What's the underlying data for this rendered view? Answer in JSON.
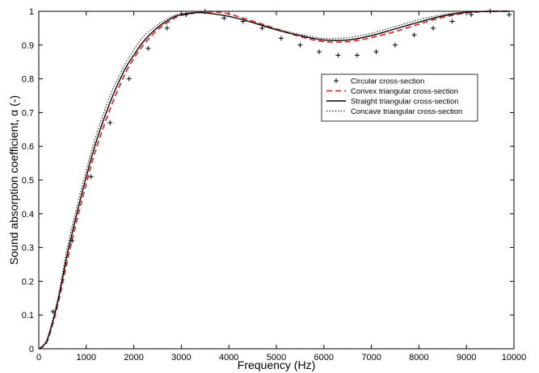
{
  "chart_data": {
    "type": "line",
    "title": "",
    "xlabel": "Frequency (Hz)",
    "ylabel": "Sound absorption coefficient, α (-)",
    "xlim": [
      0,
      10000
    ],
    "ylim": [
      0,
      1
    ],
    "xticks": [
      "0",
      "1000",
      "2000",
      "3000",
      "4000",
      "5000",
      "6000",
      "7000",
      "8000",
      "9000",
      "10000"
    ],
    "yticks": [
      "0",
      "0.1",
      "0.2",
      "0.3",
      "0.4",
      "0.5",
      "0.6",
      "0.7",
      "0.8",
      "0.9",
      "1"
    ],
    "grid": false,
    "legend_position": "upper-right",
    "series": [
      {
        "name": "Circular cross-section",
        "style": "markers-plus",
        "color": "#000000",
        "x": [
          300,
          700,
          1100,
          1500,
          1900,
          2300,
          2700,
          3100,
          3500,
          3900,
          4300,
          4700,
          5100,
          5500,
          5900,
          6300,
          6700,
          7100,
          7500,
          7900,
          8300,
          8700,
          9100,
          9500,
          9900
        ],
        "y": [
          0.11,
          0.32,
          0.51,
          0.67,
          0.8,
          0.89,
          0.95,
          0.99,
          1.0,
          0.98,
          0.97,
          0.95,
          0.92,
          0.9,
          0.88,
          0.87,
          0.87,
          0.88,
          0.9,
          0.93,
          0.95,
          0.97,
          0.99,
          1.0,
          0.99
        ]
      },
      {
        "name": "Convex triangular cross-section",
        "style": "dashed",
        "color": "#e03030",
        "x": [
          0,
          100,
          200,
          400,
          600,
          800,
          1000,
          1200,
          1500,
          1800,
          2000,
          2200,
          2500,
          2800,
          3000,
          3300,
          3500,
          3800,
          4000,
          4300,
          4700,
          5000,
          5500,
          6000,
          6500,
          7000,
          7500,
          8000,
          8500,
          9000,
          9500,
          9900
        ],
        "y": [
          0,
          0.008,
          0.03,
          0.13,
          0.26,
          0.38,
          0.49,
          0.59,
          0.71,
          0.81,
          0.86,
          0.9,
          0.945,
          0.975,
          0.988,
          0.995,
          0.998,
          0.997,
          0.992,
          0.98,
          0.962,
          0.948,
          0.925,
          0.91,
          0.91,
          0.922,
          0.94,
          0.962,
          0.982,
          0.995,
          1.0,
          1.0
        ]
      },
      {
        "name": "Straight triangular cross-section",
        "style": "solid",
        "color": "#000000",
        "x": [
          0,
          100,
          200,
          400,
          600,
          800,
          1000,
          1200,
          1500,
          1800,
          2000,
          2200,
          2500,
          2800,
          3000,
          3300,
          3500,
          3800,
          4000,
          4300,
          4700,
          5000,
          5500,
          6000,
          6500,
          7000,
          7500,
          8000,
          8500,
          9000,
          9500,
          9900
        ],
        "y": [
          0,
          0.01,
          0.035,
          0.14,
          0.28,
          0.4,
          0.51,
          0.61,
          0.73,
          0.825,
          0.87,
          0.91,
          0.952,
          0.98,
          0.99,
          0.996,
          0.995,
          0.99,
          0.985,
          0.975,
          0.958,
          0.945,
          0.928,
          0.915,
          0.915,
          0.928,
          0.948,
          0.968,
          0.986,
          0.997,
          1.0,
          1.0
        ]
      },
      {
        "name": "Concave triangular cross-section",
        "style": "dotted",
        "color": "#333333",
        "x": [
          0,
          100,
          200,
          400,
          600,
          800,
          1000,
          1200,
          1500,
          1800,
          2000,
          2200,
          2500,
          2800,
          3000,
          3300,
          3500,
          3800,
          4000,
          4300,
          4700,
          5000,
          5500,
          6000,
          6500,
          7000,
          7500,
          8000,
          8500,
          9000,
          9500,
          9900
        ],
        "y": [
          0,
          0.012,
          0.04,
          0.15,
          0.3,
          0.42,
          0.53,
          0.63,
          0.75,
          0.84,
          0.885,
          0.925,
          0.96,
          0.985,
          0.993,
          0.997,
          0.995,
          0.99,
          0.985,
          0.975,
          0.96,
          0.948,
          0.932,
          0.92,
          0.922,
          0.935,
          0.955,
          0.975,
          0.99,
          0.998,
          1.0,
          1.0
        ]
      }
    ]
  }
}
